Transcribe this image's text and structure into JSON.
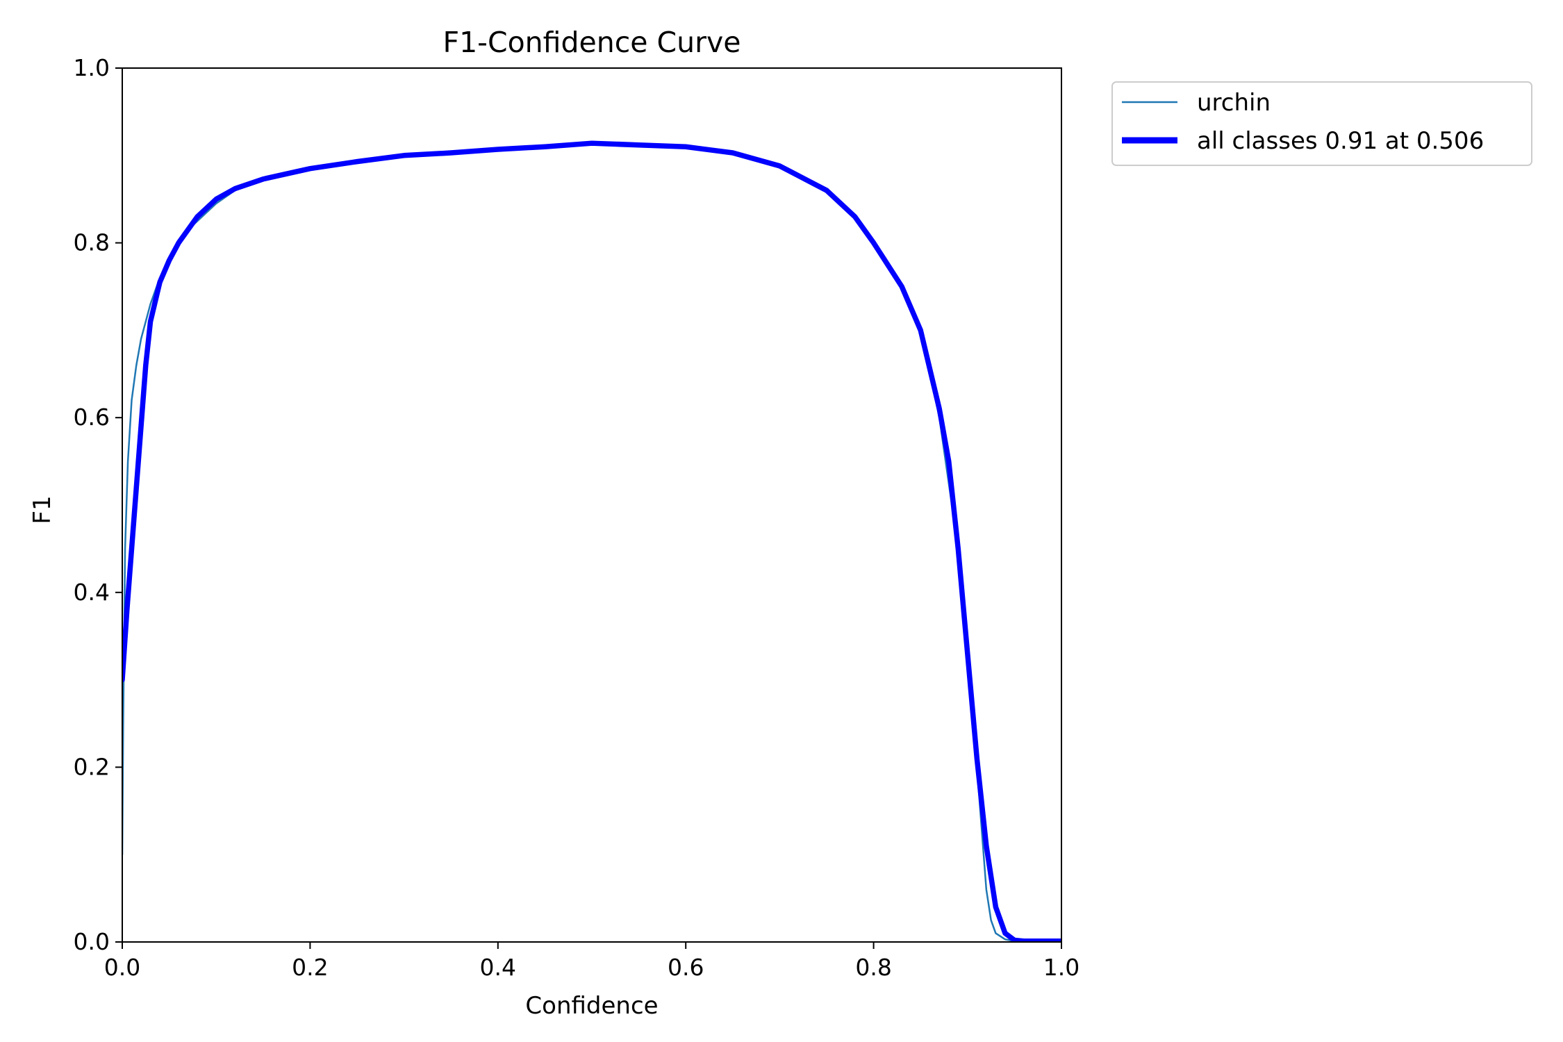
{
  "chart_data": {
    "type": "line",
    "title": "F1-Confidence Curve",
    "xlabel": "Confidence",
    "ylabel": "F1",
    "xlim": [
      0.0,
      1.0
    ],
    "ylim": [
      0.0,
      1.0
    ],
    "xticks": [
      0.0,
      0.2,
      0.4,
      0.6,
      0.8,
      1.0
    ],
    "yticks": [
      0.0,
      0.2,
      0.4,
      0.6,
      0.8,
      1.0
    ],
    "xtick_labels": [
      "0.0",
      "0.2",
      "0.4",
      "0.6",
      "0.8",
      "1.0"
    ],
    "ytick_labels": [
      "0.0",
      "0.2",
      "0.4",
      "0.6",
      "0.8",
      "1.0"
    ],
    "grid": false,
    "legend_position": "outside-top-right",
    "series": [
      {
        "name": "urchin",
        "color": "#1f77b4",
        "style": "thin",
        "x": [
          0.0,
          0.001,
          0.003,
          0.006,
          0.01,
          0.015,
          0.02,
          0.03,
          0.04,
          0.05,
          0.06,
          0.07,
          0.08,
          0.1,
          0.12,
          0.15,
          0.2,
          0.25,
          0.3,
          0.35,
          0.4,
          0.45,
          0.5,
          0.55,
          0.6,
          0.65,
          0.7,
          0.75,
          0.78,
          0.8,
          0.83,
          0.85,
          0.87,
          0.89,
          0.9,
          0.91,
          0.92,
          0.925,
          0.93,
          0.94,
          0.95,
          0.96,
          1.0
        ],
        "y": [
          0.1,
          0.25,
          0.45,
          0.55,
          0.62,
          0.66,
          0.69,
          0.73,
          0.76,
          0.78,
          0.8,
          0.815,
          0.825,
          0.845,
          0.86,
          0.872,
          0.885,
          0.893,
          0.9,
          0.903,
          0.907,
          0.91,
          0.914,
          0.912,
          0.91,
          0.903,
          0.888,
          0.86,
          0.83,
          0.8,
          0.75,
          0.7,
          0.6,
          0.45,
          0.33,
          0.2,
          0.06,
          0.025,
          0.01,
          0.003,
          0.001,
          0.0,
          0.0
        ]
      },
      {
        "name": "all classes 0.91 at 0.506",
        "color": "#0000ff",
        "style": "thick",
        "x": [
          0.0,
          0.005,
          0.01,
          0.015,
          0.02,
          0.025,
          0.03,
          0.04,
          0.05,
          0.06,
          0.07,
          0.08,
          0.1,
          0.12,
          0.15,
          0.2,
          0.25,
          0.3,
          0.35,
          0.4,
          0.45,
          0.5,
          0.55,
          0.6,
          0.65,
          0.7,
          0.75,
          0.78,
          0.8,
          0.83,
          0.85,
          0.87,
          0.88,
          0.89,
          0.9,
          0.91,
          0.92,
          0.93,
          0.94,
          0.95,
          0.96,
          1.0
        ],
        "y": [
          0.3,
          0.38,
          0.45,
          0.52,
          0.59,
          0.66,
          0.71,
          0.755,
          0.78,
          0.8,
          0.815,
          0.83,
          0.85,
          0.862,
          0.873,
          0.885,
          0.893,
          0.9,
          0.903,
          0.907,
          0.91,
          0.914,
          0.912,
          0.91,
          0.903,
          0.888,
          0.86,
          0.83,
          0.8,
          0.75,
          0.7,
          0.61,
          0.55,
          0.45,
          0.33,
          0.21,
          0.11,
          0.04,
          0.01,
          0.002,
          0.001,
          0.001
        ]
      }
    ]
  }
}
